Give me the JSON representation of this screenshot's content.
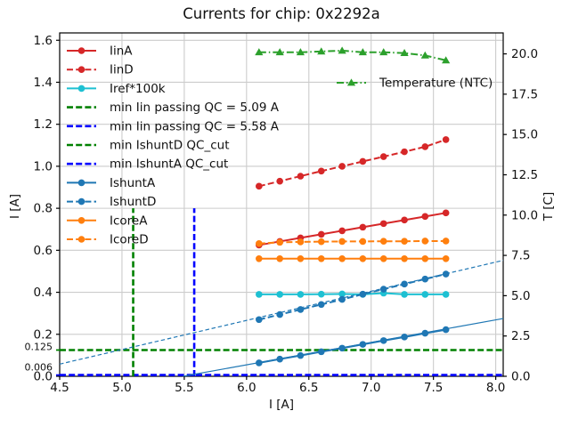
{
  "chart_data": {
    "type": "line",
    "title": "Currents for chip: 0x2292a",
    "xlabel": "I [A]",
    "ylabel_left": "I [A]",
    "ylabel_right": "T [C]",
    "xlim": [
      4.5,
      8.06
    ],
    "ylim_left": [
      0,
      1.635
    ],
    "ylim_right": [
      0,
      21.3
    ],
    "xticks": [
      4.5,
      5.0,
      5.5,
      6.0,
      6.5,
      7.0,
      7.5,
      8.0
    ],
    "yticks_left": [
      0.0,
      0.2,
      0.4,
      0.6,
      0.8,
      1.0,
      1.2,
      1.4,
      1.6
    ],
    "yticks_right": [
      0.0,
      2.5,
      5.0,
      7.5,
      10.0,
      12.5,
      15.0,
      17.5,
      20.0
    ],
    "extra_yticks_left": [
      {
        "value": 0.125,
        "label": "0.125",
        "color": "#008000",
        "label_y_offset": -4
      },
      {
        "value": 0.006,
        "label": "0.006",
        "color": "#0000ff",
        "label_y_offset": -9
      }
    ],
    "grid": true,
    "x": [
      6.1,
      6.267,
      6.433,
      6.6,
      6.767,
      6.933,
      7.1,
      7.267,
      7.433,
      7.6
    ],
    "series": [
      {
        "name": "IinA",
        "axis": "left",
        "color": "#d62728",
        "dash": "solid",
        "marker": "circle",
        "values": [
          0.625,
          0.642,
          0.659,
          0.676,
          0.693,
          0.71,
          0.727,
          0.744,
          0.761,
          0.778
        ]
      },
      {
        "name": "IinD",
        "axis": "left",
        "color": "#d62728",
        "dash": "dashed",
        "marker": "circle",
        "values": [
          0.905,
          0.929,
          0.953,
          0.977,
          1.0,
          1.023,
          1.046,
          1.069,
          1.093,
          1.127
        ]
      },
      {
        "name": "Iref*100k",
        "axis": "left",
        "color": "#1ec0d2",
        "dash": "solid",
        "marker": "circle",
        "values": [
          0.39,
          0.39,
          0.39,
          0.391,
          0.392,
          0.39,
          0.396,
          0.39,
          0.39,
          0.39
        ]
      },
      {
        "name": "IshuntA",
        "axis": "left",
        "color": "#1f77b4",
        "dash": "solid",
        "marker": "circle",
        "values": [
          0.064,
          0.082,
          0.099,
          0.117,
          0.134,
          0.152,
          0.17,
          0.187,
          0.205,
          0.222
        ]
      },
      {
        "name": "IshuntD",
        "axis": "left",
        "color": "#1f77b4",
        "dash": "dashed",
        "marker": "circle",
        "values": [
          0.27,
          0.294,
          0.318,
          0.342,
          0.366,
          0.391,
          0.415,
          0.439,
          0.463,
          0.487
        ]
      },
      {
        "name": "IcoreA",
        "axis": "left",
        "color": "#ff7f0e",
        "dash": "solid",
        "marker": "circle",
        "values": [
          0.56,
          0.56,
          0.56,
          0.56,
          0.56,
          0.56,
          0.56,
          0.56,
          0.56,
          0.56
        ]
      },
      {
        "name": "IcoreD",
        "axis": "left",
        "color": "#ff7f0e",
        "dash": "dashed",
        "marker": "circle",
        "values": [
          0.632,
          0.638,
          0.64,
          0.641,
          0.642,
          0.642,
          0.643,
          0.643,
          0.644,
          0.644
        ]
      },
      {
        "name": "Temperature (NTC)",
        "axis": "right",
        "color": "#2ca02c",
        "dash": "dashdot",
        "marker": "triangle",
        "values": [
          20.1,
          20.1,
          20.1,
          20.15,
          20.2,
          20.1,
          20.1,
          20.05,
          19.9,
          19.6
        ]
      }
    ],
    "hlines": [
      {
        "name": "min IshuntD QC_cut",
        "y": 0.125,
        "color": "#008000",
        "dash": "dashed",
        "width": 2.6
      },
      {
        "name": "min IshuntA QC_cut",
        "y": 0.006,
        "color": "#0000ff",
        "dash": "dashed",
        "width": 2.6
      }
    ],
    "vlines": [
      {
        "name": "min Iin passing QC = 5.09 A",
        "x": 5.09,
        "y0": 0,
        "y1": 0.8,
        "color": "#008000",
        "dash": "dashed",
        "width": 2.6
      },
      {
        "name": "min Iin passing QC = 5.58 A",
        "x": 5.58,
        "y0": 0,
        "y1": 0.8,
        "color": "#0000ff",
        "dash": "dashed",
        "width": 2.6
      }
    ],
    "fit_lines": [
      {
        "name": "IshuntD fit",
        "color": "#1f77b4",
        "dash": "smalldash",
        "width": 1.2,
        "x0": 4.5,
        "y0": 0.058,
        "x1": 8.06,
        "y1": 0.552
      },
      {
        "name": "IshuntA fit",
        "color": "#1f77b4",
        "dash": "solid",
        "width": 1.2,
        "x0": 5.49,
        "y0": 0.0,
        "x1": 8.06,
        "y1": 0.275
      }
    ],
    "legend_main": [
      {
        "label": "IinA",
        "color": "#d62728",
        "dash": "solid",
        "marker": "circle",
        "width": 2
      },
      {
        "label": "IinD",
        "color": "#d62728",
        "dash": "dashed",
        "marker": "circle",
        "width": 2
      },
      {
        "label": "Iref*100k",
        "color": "#1ec0d2",
        "dash": "solid",
        "marker": "circle",
        "width": 2
      },
      {
        "label": "min Iin passing QC = 5.09 A",
        "color": "#008000",
        "dash": "dashed",
        "marker": "none",
        "width": 2.6
      },
      {
        "label": "min Iin passing QC = 5.58 A",
        "color": "#0000ff",
        "dash": "dashed",
        "marker": "none",
        "width": 2.6
      },
      {
        "label": "min IshuntD QC_cut",
        "color": "#008000",
        "dash": "dashed",
        "marker": "none",
        "width": 2.6
      },
      {
        "label": "min IshuntA QC_cut",
        "color": "#0000ff",
        "dash": "dashed",
        "marker": "none",
        "width": 2.6
      },
      {
        "label": "IshuntA",
        "color": "#1f77b4",
        "dash": "solid",
        "marker": "circle",
        "width": 2
      },
      {
        "label": "IshuntD",
        "color": "#1f77b4",
        "dash": "dashed",
        "marker": "circle",
        "width": 2
      },
      {
        "label": "IcoreA",
        "color": "#ff7f0e",
        "dash": "solid",
        "marker": "circle",
        "width": 2
      },
      {
        "label": "IcoreD",
        "color": "#ff7f0e",
        "dash": "dashed",
        "marker": "circle",
        "width": 2
      }
    ],
    "legend_right": [
      {
        "label": "Temperature (NTC)",
        "color": "#2ca02c",
        "dash": "dashdot",
        "marker": "triangle",
        "width": 2
      }
    ],
    "colors": {
      "grid": "#cccccc",
      "spine": "#000000",
      "text": "#111111"
    }
  }
}
